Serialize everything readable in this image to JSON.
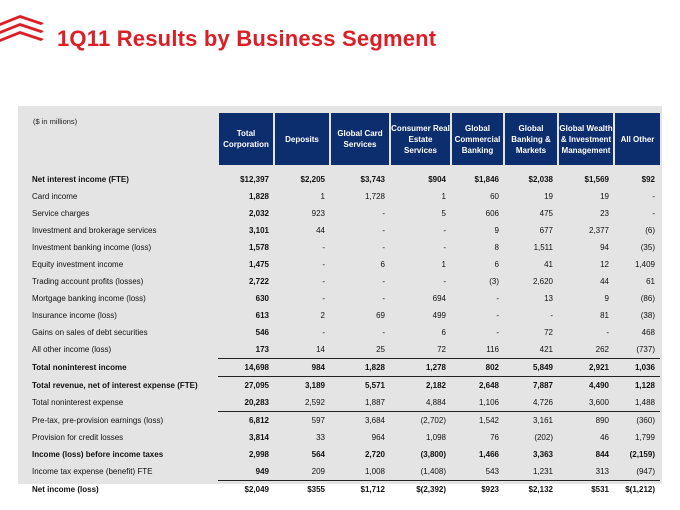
{
  "header": {
    "title": "1Q11 Results by Business Segment"
  },
  "table": {
    "units": "($ in millions)",
    "columns": [
      "Total Corporation",
      "Deposits",
      "Global Card Services",
      "Consumer Real Estate Services",
      "Global Commercial Banking",
      "Global Banking & Markets",
      "Global Wealth & Investment Management",
      "All Other"
    ],
    "rows": [
      {
        "label": "Net interest income (FTE)",
        "bold": true,
        "values": [
          "$12,397",
          "$2,205",
          "$3,743",
          "$904",
          "$1,846",
          "$2,038",
          "$1,569",
          "$92"
        ]
      },
      {
        "label": "Card income",
        "values": [
          "1,828",
          "1",
          "1,728",
          "1",
          "60",
          "19",
          "19",
          "-"
        ]
      },
      {
        "label": "Service charges",
        "values": [
          "2,032",
          "923",
          "-",
          "5",
          "606",
          "475",
          "23",
          "-"
        ]
      },
      {
        "label": "Investment and brokerage services",
        "values": [
          "3,101",
          "44",
          "-",
          "-",
          "9",
          "677",
          "2,377",
          "(6)"
        ]
      },
      {
        "label": "Investment banking income (loss)",
        "values": [
          "1,578",
          "-",
          "-",
          "-",
          "8",
          "1,511",
          "94",
          "(35)"
        ]
      },
      {
        "label": "Equity investment income",
        "values": [
          "1,475",
          "-",
          "6",
          "1",
          "6",
          "41",
          "12",
          "1,409"
        ]
      },
      {
        "label": "Trading account profits (losses)",
        "values": [
          "2,722",
          "-",
          "-",
          "-",
          "(3)",
          "2,620",
          "44",
          "61"
        ]
      },
      {
        "label": "Mortgage banking income (loss)",
        "values": [
          "630",
          "-",
          "-",
          "694",
          "-",
          "13",
          "9",
          "(86)"
        ]
      },
      {
        "label": "Insurance income (loss)",
        "values": [
          "613",
          "2",
          "69",
          "499",
          "-",
          "-",
          "81",
          "(38)"
        ]
      },
      {
        "label": "Gains on sales of debt securities",
        "values": [
          "546",
          "-",
          "-",
          "6",
          "-",
          "72",
          "-",
          "468"
        ]
      },
      {
        "label": "All other income (loss)",
        "values": [
          "173",
          "14",
          "25",
          "72",
          "116",
          "421",
          "262",
          "(737)"
        ]
      },
      {
        "label": "Total noninterest income",
        "bold": true,
        "values": [
          "14,698",
          "984",
          "1,828",
          "1,278",
          "802",
          "5,849",
          "2,921",
          "1,036"
        ]
      },
      {
        "label": "Total revenue, net of interest expense (FTE)",
        "bold": true,
        "values": [
          "27,095",
          "3,189",
          "5,571",
          "2,182",
          "2,648",
          "7,887",
          "4,490",
          "1,128"
        ]
      },
      {
        "label": "Total noninterest expense",
        "values": [
          "20,283",
          "2,592",
          "1,887",
          "4,884",
          "1,106",
          "4,726",
          "3,600",
          "1,488"
        ]
      },
      {
        "label": "Pre-tax, pre-provision earnings (loss)",
        "values": [
          "6,812",
          "597",
          "3,684",
          "(2,702)",
          "1,542",
          "3,161",
          "890",
          "(360)"
        ]
      },
      {
        "label": "Provision for credit losses",
        "values": [
          "3,814",
          "33",
          "964",
          "1,098",
          "76",
          "(202)",
          "46",
          "1,799"
        ]
      },
      {
        "label": "Income (loss) before income taxes",
        "bold": true,
        "values": [
          "2,998",
          "564",
          "2,720",
          "(3,800)",
          "1,466",
          "3,363",
          "844",
          "(2,159)"
        ]
      },
      {
        "label": "Income tax expense (benefit) FTE",
        "values": [
          "949",
          "209",
          "1,008",
          "(1,408)",
          "543",
          "1,231",
          "313",
          "(947)"
        ]
      },
      {
        "label": "Net income (loss)",
        "bold": true,
        "values": [
          "$2,049",
          "$355",
          "$1,712",
          "$(2,392)",
          "$923",
          "$2,132",
          "$531",
          "$(1,212)"
        ]
      }
    ]
  },
  "colors": {
    "brand_red": "#dc1f26",
    "header_navy": "#0c2e6e",
    "panel_gray": "#e4e4e5"
  }
}
